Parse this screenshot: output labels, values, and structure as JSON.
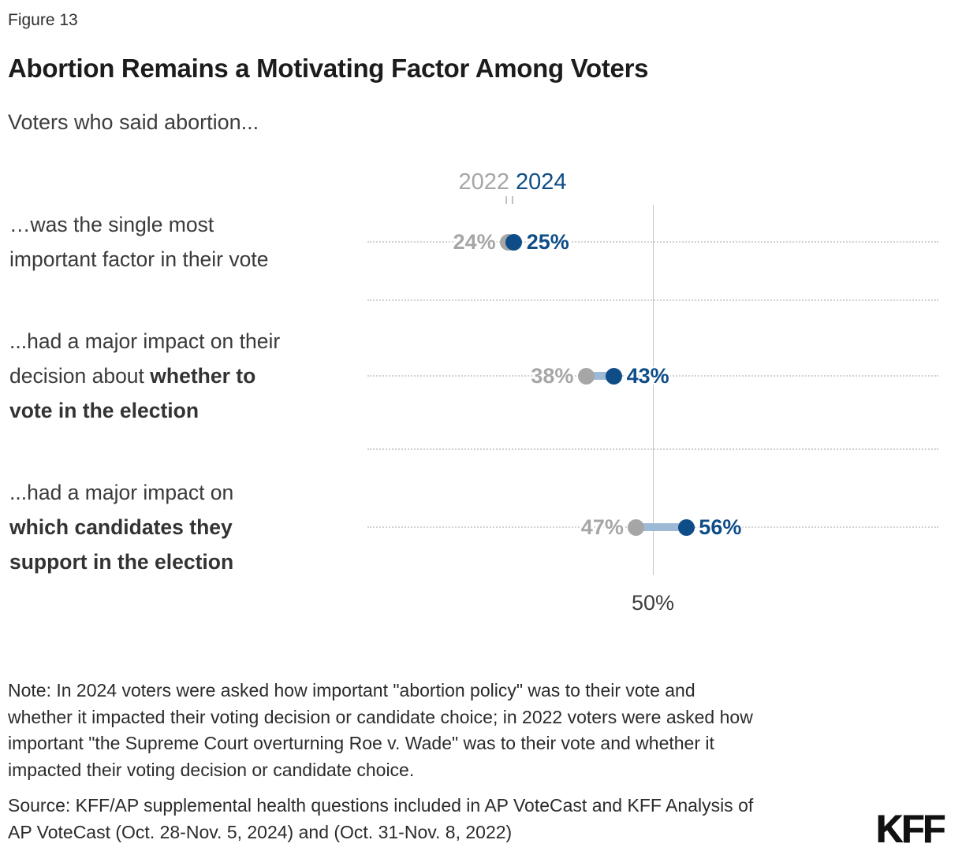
{
  "figure_label": "Figure 13",
  "title": "Abortion Remains a Motivating Factor Among Voters",
  "subtitle": "Voters who said abortion...",
  "legend": {
    "items": [
      {
        "label": "2022",
        "color": "#a6a6a6"
      },
      {
        "label": "2024",
        "color": "#0e4d88"
      }
    ]
  },
  "colors": {
    "blue_2024": "#0e4d88",
    "gray_2022": "#a6a6a6",
    "connector": "#9db9d6",
    "gridline": "#d2d2d2",
    "reference_line": "#c5c5c5"
  },
  "axis": {
    "reference_label": "50%"
  },
  "note_lines": [
    "Note: In 2024 voters were asked how important \"abortion policy\" was to their vote and",
    "whether it impacted their voting decision or candidate choice; in 2022 voters were asked how",
    "important \"the Supreme Court overturning Roe v. Wade\" was to their vote and whether it",
    "impacted their voting decision or candidate choice."
  ],
  "source_lines": [
    "Source: KFF/AP supplemental health questions included in AP VoteCast and KFF Analysis of",
    "AP VoteCast (Oct. 28-Nov. 5, 2024) and (Oct. 31-Nov. 8, 2022)"
  ],
  "logo_text": "KFF",
  "chart_data": {
    "type": "dumbbell",
    "title": "Abortion Remains a Motivating Factor Among Voters",
    "subtitle": "Voters who said abortion...",
    "series_names": [
      "2022",
      "2024"
    ],
    "series_colors": {
      "s2022": "#a6a6a6",
      "s2024": "#0e4d88"
    },
    "connector_color": "#9db9d6",
    "reference_value": 50,
    "reference_label": "50%",
    "legend_position": "top",
    "grid": "dotted-horizontal",
    "rows": [
      {
        "category": "…was the single most important factor in their vote",
        "category_lines": [
          [
            {
              "t": "…was the single most",
              "b": false
            }
          ],
          [
            {
              "t": "important factor in their vote",
              "b": false
            }
          ]
        ],
        "v2022": 24,
        "v2024": 25,
        "label2022": "24%",
        "label2024": "25%"
      },
      {
        "category": "...had a major impact on their decision about whether to vote in the election",
        "category_lines": [
          [
            {
              "t": "...had a major impact on their",
              "b": false
            }
          ],
          [
            {
              "t": "decision about ",
              "b": false
            },
            {
              "t": "whether to",
              "b": true
            }
          ],
          [
            {
              "t": "vote in the election",
              "b": true
            }
          ]
        ],
        "v2022": 38,
        "v2024": 43,
        "label2022": "38%",
        "label2024": "43%"
      },
      {
        "category": "...had a major impact on which candidates they support in the election",
        "category_lines": [
          [
            {
              "t": "...had a major impact on",
              "b": false
            }
          ],
          [
            {
              "t": "which candidates they",
              "b": true
            }
          ],
          [
            {
              "t": "support in the election",
              "b": true
            }
          ]
        ],
        "v2022": 47,
        "v2024": 56,
        "label2022": "47%",
        "label2024": "56%"
      }
    ]
  }
}
